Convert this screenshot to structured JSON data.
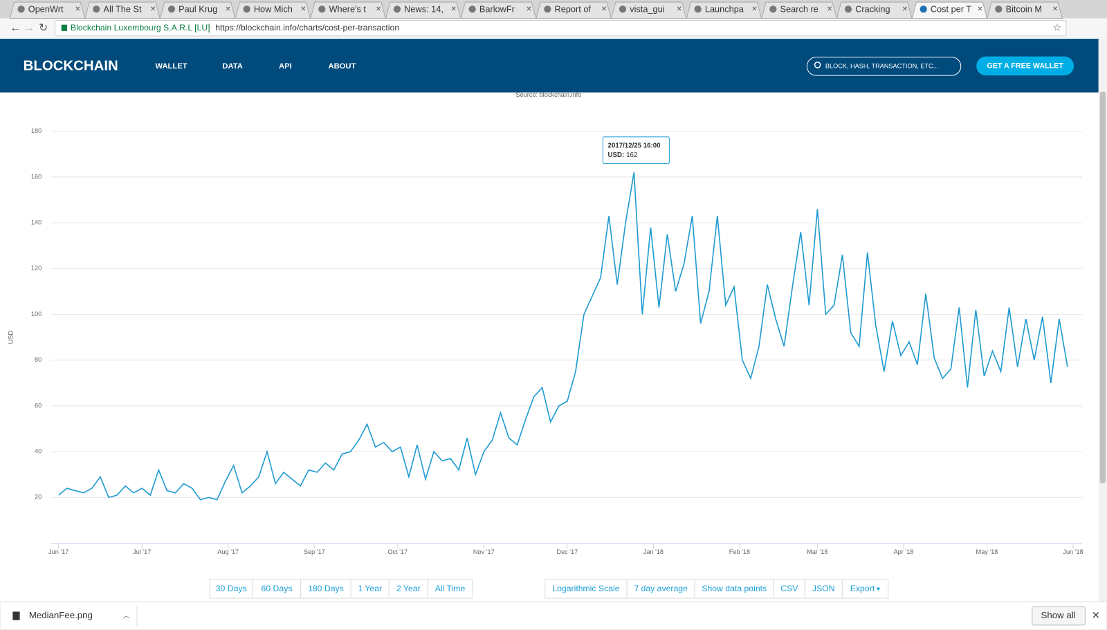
{
  "browser": {
    "tabs": [
      "OpenWrt",
      "All The St",
      "Paul Krug",
      "How Mich",
      "Where's t",
      "News: 14,",
      "BarlowFr",
      "Report of",
      "vista_gui",
      "Launchpa",
      "Search re",
      "Cracking",
      "Cost per T",
      "Bitcoin M"
    ],
    "site_identity": "Blockchain Luxembourg S.A.R.L [LU]",
    "url": "https://blockchain.info/charts/cost-per-transaction"
  },
  "header": {
    "logo": "BLOCKCHAIN",
    "nav": [
      "WALLET",
      "DATA",
      "API",
      "ABOUT"
    ],
    "search_placeholder": "BLOCK, HASH, TRANSACTION, ETC...",
    "cta": "GET A FREE WALLET"
  },
  "source": "Source: blockchain.info",
  "tooltip": {
    "date": "2017/12/25 16:00",
    "label": "USD:",
    "value": "162"
  },
  "range_buttons": [
    "30 Days",
    "60 Days",
    "180 Days",
    "1 Year",
    "2 Year",
    "All Time"
  ],
  "option_buttons": [
    "Logarithmic Scale",
    "7 day average",
    "Show data points",
    "CSV",
    "JSON",
    "Export"
  ],
  "downloads": {
    "file": "MedianFee.png",
    "show_all": "Show all"
  },
  "chart_data": {
    "type": "line",
    "y_label": "USD",
    "color": "#1f9bd1",
    "grid": true,
    "ylim": [
      0,
      180
    ],
    "yticks": [
      20,
      40,
      60,
      80,
      100,
      120,
      140,
      160,
      180
    ],
    "xlim": [
      "2017-06-01",
      "2018-06-01"
    ],
    "xticks": [
      {
        "value": "2017-06-01",
        "label": "Jun '17"
      },
      {
        "value": "2017-07-01",
        "label": "Jul '17"
      },
      {
        "value": "2017-08-01",
        "label": "Aug '17"
      },
      {
        "value": "2017-09-01",
        "label": "Sep '17"
      },
      {
        "value": "2017-10-01",
        "label": "Oct '17"
      },
      {
        "value": "2017-11-01",
        "label": "Nov '17"
      },
      {
        "value": "2017-12-01",
        "label": "Dec '17"
      },
      {
        "value": "2018-01-01",
        "label": "Jan '18"
      },
      {
        "value": "2018-02-01",
        "label": "Feb '18"
      },
      {
        "value": "2018-03-01",
        "label": "Mar '18"
      },
      {
        "value": "2018-04-01",
        "label": "Apr '18"
      },
      {
        "value": "2018-05-01",
        "label": "May '18"
      },
      {
        "value": "2018-06-01",
        "label": "Jun '18"
      }
    ],
    "x": [
      "2017-06-01",
      "2017-06-04",
      "2017-06-07",
      "2017-06-10",
      "2017-06-13",
      "2017-06-16",
      "2017-06-19",
      "2017-06-22",
      "2017-06-25",
      "2017-06-28",
      "2017-07-01",
      "2017-07-04",
      "2017-07-07",
      "2017-07-10",
      "2017-07-13",
      "2017-07-16",
      "2017-07-19",
      "2017-07-22",
      "2017-07-25",
      "2017-07-28",
      "2017-07-31",
      "2017-08-03",
      "2017-08-06",
      "2017-08-09",
      "2017-08-12",
      "2017-08-15",
      "2017-08-18",
      "2017-08-21",
      "2017-08-24",
      "2017-08-27",
      "2017-08-30",
      "2017-09-02",
      "2017-09-05",
      "2017-09-08",
      "2017-09-11",
      "2017-09-14",
      "2017-09-17",
      "2017-09-20",
      "2017-09-23",
      "2017-09-26",
      "2017-09-29",
      "2017-10-02",
      "2017-10-05",
      "2017-10-08",
      "2017-10-11",
      "2017-10-14",
      "2017-10-17",
      "2017-10-20",
      "2017-10-23",
      "2017-10-26",
      "2017-10-29",
      "2017-11-01",
      "2017-11-04",
      "2017-11-07",
      "2017-11-10",
      "2017-11-13",
      "2017-11-16",
      "2017-11-19",
      "2017-11-22",
      "2017-11-25",
      "2017-11-28",
      "2017-12-01",
      "2017-12-04",
      "2017-12-07",
      "2017-12-10",
      "2017-12-13",
      "2017-12-16",
      "2017-12-19",
      "2017-12-22",
      "2017-12-25",
      "2017-12-28",
      "2017-12-31",
      "2018-01-03",
      "2018-01-06",
      "2018-01-09",
      "2018-01-12",
      "2018-01-15",
      "2018-01-18",
      "2018-01-21",
      "2018-01-24",
      "2018-01-27",
      "2018-01-30",
      "2018-02-02",
      "2018-02-05",
      "2018-02-08",
      "2018-02-11",
      "2018-02-14",
      "2018-02-17",
      "2018-02-20",
      "2018-02-23",
      "2018-02-26",
      "2018-03-01",
      "2018-03-04",
      "2018-03-07",
      "2018-03-10",
      "2018-03-13",
      "2018-03-16",
      "2018-03-19",
      "2018-03-22",
      "2018-03-25",
      "2018-03-28",
      "2018-03-31",
      "2018-04-03",
      "2018-04-06",
      "2018-04-09",
      "2018-04-12",
      "2018-04-15",
      "2018-04-18",
      "2018-04-21",
      "2018-04-24",
      "2018-04-27",
      "2018-04-30",
      "2018-05-03",
      "2018-05-06",
      "2018-05-09",
      "2018-05-12",
      "2018-05-15",
      "2018-05-18",
      "2018-05-21",
      "2018-05-24",
      "2018-05-27",
      "2018-05-30"
    ],
    "values": [
      21,
      24,
      23,
      22,
      24,
      29,
      20,
      21,
      25,
      22,
      24,
      21,
      32,
      23,
      22,
      26,
      24,
      19,
      20,
      19,
      27,
      34,
      22,
      25,
      29,
      40,
      26,
      31,
      28,
      25,
      32,
      31,
      35,
      32,
      39,
      40,
      45,
      52,
      42,
      44,
      40,
      42,
      29,
      43,
      28,
      40,
      36,
      37,
      32,
      46,
      30,
      40,
      45,
      57,
      46,
      43,
      54,
      64,
      68,
      53,
      60,
      62,
      75,
      100,
      108,
      116,
      143,
      113,
      140,
      162,
      100,
      138,
      103,
      135,
      110,
      122,
      143,
      96,
      110,
      143,
      104,
      112,
      80,
      72,
      86,
      113,
      98,
      86,
      112,
      136,
      104,
      146,
      100,
      104,
      126,
      92,
      86,
      127,
      95,
      75,
      97,
      82,
      88,
      78,
      109,
      81,
      72,
      76,
      103,
      68,
      102,
      73,
      84,
      75,
      103,
      77,
      98,
      80,
      99,
      70,
      98,
      77
    ]
  }
}
